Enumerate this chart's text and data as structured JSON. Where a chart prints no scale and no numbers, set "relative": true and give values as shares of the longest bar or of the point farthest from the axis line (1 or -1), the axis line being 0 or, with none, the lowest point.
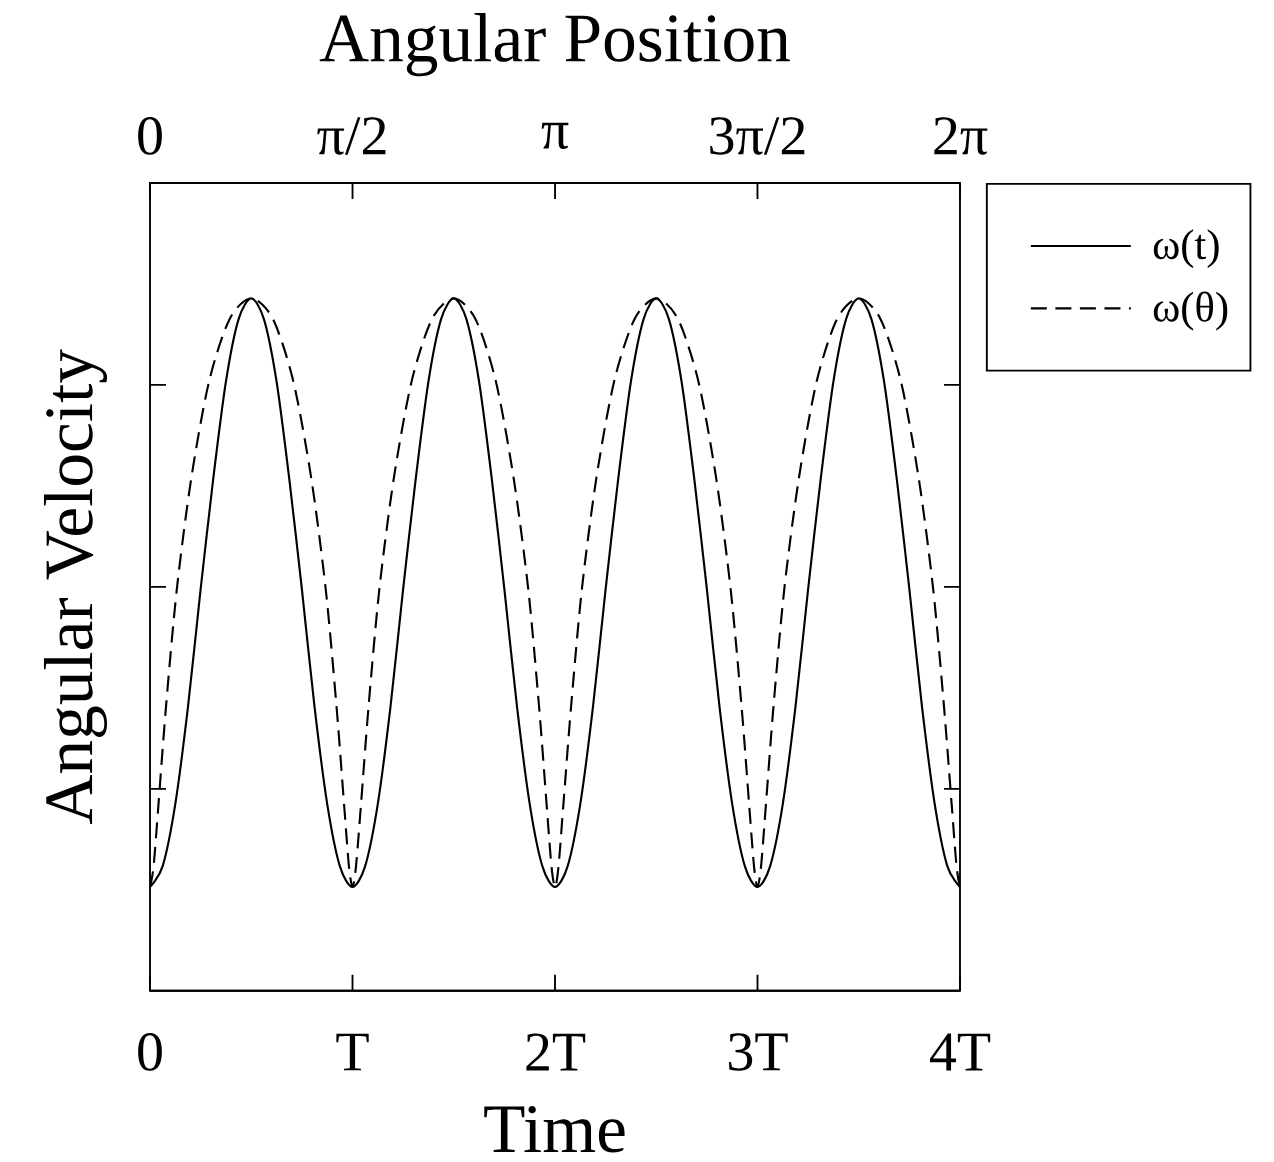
{
  "chart_data": {
    "type": "line",
    "xlabel": "Time",
    "ylabel": "Angular Velocity",
    "x2label": "Angular Position",
    "relative": true,
    "legend": "right",
    "xlim": [
      0,
      4
    ],
    "xticks": [
      0,
      {
        "value": 1,
        "label": "T"
      },
      {
        "value": 2,
        "label": "2T"
      },
      {
        "value": 3,
        "label": "3T"
      },
      {
        "value": 4,
        "label": "4T"
      }
    ],
    "x2lim": [
      0,
      6.283
    ],
    "x2ticks": [
      0,
      {
        "value": 1.571,
        "label": "π/2"
      },
      {
        "value": 3.142,
        "label": "π"
      },
      {
        "value": 4.712,
        "label": "3π/2"
      },
      {
        "value": 6.283,
        "label": "2π"
      }
    ],
    "series": [
      {
        "name": "ω(t)",
        "color": "#000000",
        "line_style": "solid",
        "x": [
          0,
          0.0625,
          0.125,
          0.1875,
          0.25,
          0.3125,
          0.375,
          0.4375,
          0.5,
          0.5625,
          0.625,
          0.6875,
          0.75,
          0.8125,
          0.875,
          0.9375,
          1,
          1.0625,
          1.125,
          1.1875,
          1.25,
          1.3125,
          1.375,
          1.4375,
          1.5,
          1.5625,
          1.625,
          1.6875,
          1.75,
          1.8125,
          1.875,
          1.9375,
          2,
          2.0625,
          2.125,
          2.1875,
          2.25,
          2.3125,
          2.375,
          2.4375,
          2.5,
          2.5625,
          2.625,
          2.6875,
          2.75,
          2.8125,
          2.875,
          2.9375,
          3,
          3.0625,
          3.125,
          3.1875,
          3.25,
          3.3125,
          3.375,
          3.4375,
          3.5,
          3.5625,
          3.625,
          3.6875,
          3.75,
          3.8125,
          3.875,
          3.9375,
          4
        ],
        "values": [
          0.15,
          0.18,
          0.27,
          0.41,
          0.58,
          0.74,
          0.88,
          0.97,
          1.0,
          0.97,
          0.88,
          0.74,
          0.58,
          0.41,
          0.27,
          0.18,
          0.15,
          0.18,
          0.27,
          0.41,
          0.58,
          0.74,
          0.88,
          0.97,
          1.0,
          0.97,
          0.88,
          0.74,
          0.58,
          0.41,
          0.27,
          0.18,
          0.15,
          0.18,
          0.27,
          0.41,
          0.58,
          0.74,
          0.88,
          0.97,
          1.0,
          0.97,
          0.88,
          0.74,
          0.58,
          0.41,
          0.27,
          0.18,
          0.15,
          0.18,
          0.27,
          0.41,
          0.58,
          0.74,
          0.88,
          0.97,
          1.0,
          0.97,
          0.88,
          0.74,
          0.58,
          0.41,
          0.27,
          0.18,
          0.15
        ]
      },
      {
        "name": "ω(θ)",
        "color": "#000000",
        "line_style": "dashed",
        "axis": "x2",
        "x": [
          0,
          0.028,
          0.066,
          0.124,
          0.208,
          0.32,
          0.458,
          0.617,
          0.785,
          0.954,
          1.112,
          1.251,
          1.363,
          1.447,
          1.505,
          1.543,
          1.571,
          1.598,
          1.637,
          1.695,
          1.779,
          1.891,
          2.029,
          2.187,
          2.356,
          2.525,
          2.683,
          2.821,
          2.934,
          3.018,
          3.076,
          3.114,
          3.142,
          3.169,
          3.207,
          3.266,
          3.35,
          3.462,
          3.6,
          3.758,
          3.927,
          4.096,
          4.254,
          4.392,
          4.504,
          4.589,
          4.647,
          4.685,
          4.712,
          4.74,
          4.778,
          4.836,
          4.92,
          5.033,
          5.171,
          5.329,
          5.498,
          5.667,
          5.825,
          5.963,
          6.075,
          6.159,
          6.218,
          6.256,
          6.283
        ],
        "values": [
          0.15,
          0.18,
          0.27,
          0.41,
          0.58,
          0.74,
          0.88,
          0.97,
          1.0,
          0.97,
          0.88,
          0.74,
          0.58,
          0.41,
          0.27,
          0.18,
          0.15,
          0.18,
          0.27,
          0.41,
          0.58,
          0.74,
          0.88,
          0.97,
          1.0,
          0.97,
          0.88,
          0.74,
          0.58,
          0.41,
          0.27,
          0.18,
          0.15,
          0.18,
          0.27,
          0.41,
          0.58,
          0.74,
          0.88,
          0.97,
          1.0,
          0.97,
          0.88,
          0.74,
          0.58,
          0.41,
          0.27,
          0.18,
          0.15,
          0.18,
          0.27,
          0.41,
          0.58,
          0.74,
          0.88,
          0.97,
          1.0,
          0.97,
          0.88,
          0.74,
          0.58,
          0.41,
          0.27,
          0.18,
          0.15
        ]
      }
    ]
  }
}
